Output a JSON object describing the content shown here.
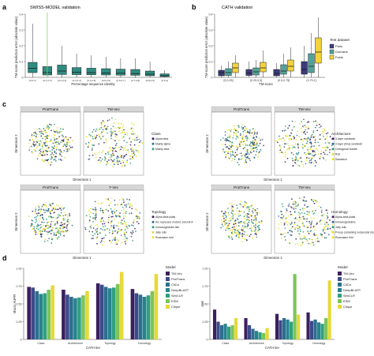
{
  "panel_labels": {
    "a": "a",
    "b": "b",
    "c": "c",
    "d": "d"
  },
  "colors": {
    "teal": "#2e8b80",
    "pairs": "#3b3b7a",
    "domains": "#4fa39a",
    "folds": "#f2d33c",
    "green_line": "#8bd36b",
    "strip_bg": "#d6d6d6",
    "scatter": [
      "#3b1f5e",
      "#2e6f8e",
      "#2fa07f",
      "#e8d83a",
      "#ece51f"
    ]
  },
  "chart_data": [
    {
      "id": "a",
      "type": "box",
      "title": "SWISS-MODEL validation",
      "ylabel": "TM-score prediction error (absolute value)",
      "xlabel": "Percentage sequence identity",
      "ylim": [
        0,
        0.4
      ],
      "yticks": [
        "0",
        "0.1",
        "0.2",
        "0.3",
        "0.4"
      ],
      "categories": [
        "[0,0.1]",
        "(0.1,0.2]",
        "(0.2,0.3]",
        "(0.3,0.4]",
        "(0.4,0.5]",
        "(0.5,0.6]",
        "(0.6,0.7]",
        "(0.7,0.8]",
        "(0.8,0.9]",
        "(0.9,1]"
      ],
      "boxes": [
        {
          "min": 0.0,
          "q1": 0.03,
          "median": 0.058,
          "q3": 0.095,
          "max": 0.34
        },
        {
          "min": 0.0,
          "q1": 0.015,
          "median": 0.03,
          "q3": 0.068,
          "max": 0.24
        },
        {
          "min": 0.0,
          "q1": 0.018,
          "median": 0.04,
          "q3": 0.078,
          "max": 0.2
        },
        {
          "min": 0.0,
          "q1": 0.017,
          "median": 0.033,
          "q3": 0.062,
          "max": 0.15
        },
        {
          "min": 0.0,
          "q1": 0.016,
          "median": 0.03,
          "q3": 0.058,
          "max": 0.14
        },
        {
          "min": 0.0,
          "q1": 0.015,
          "median": 0.028,
          "q3": 0.055,
          "max": 0.13
        },
        {
          "min": 0.0,
          "q1": 0.014,
          "median": 0.026,
          "q3": 0.052,
          "max": 0.12
        },
        {
          "min": 0.0,
          "q1": 0.013,
          "median": 0.024,
          "q3": 0.05,
          "max": 0.12
        },
        {
          "min": 0.0,
          "q1": 0.01,
          "median": 0.02,
          "q3": 0.04,
          "max": 0.1
        },
        {
          "min": 0.0,
          "q1": 0.005,
          "median": 0.01,
          "q3": 0.022,
          "max": 0.045
        }
      ],
      "vline_after_category": 1
    },
    {
      "id": "b",
      "type": "box",
      "title": "CATH validation",
      "ylabel": "TM-score prediction error (absolute value)",
      "xlabel": "TM-score",
      "ylim": [
        0,
        0.4
      ],
      "yticks": [
        "0",
        "0.1",
        "0.2",
        "0.3",
        "0.4"
      ],
      "categories": [
        "[0,0.25]",
        "(0.25,0.5]",
        "(0.5,0.75]",
        "(0.75,1]"
      ],
      "legend_title": "Test dataset",
      "series": [
        {
          "name": "Pairs",
          "boxes": [
            {
              "min": 0.0,
              "q1": 0.01,
              "median": 0.03,
              "q3": 0.045,
              "max": 0.075
            },
            {
              "min": 0.0,
              "q1": 0.012,
              "median": 0.027,
              "q3": 0.05,
              "max": 0.1
            },
            {
              "min": 0.0,
              "q1": 0.01,
              "median": 0.025,
              "q3": 0.05,
              "max": 0.09
            },
            {
              "min": 0.0,
              "q1": 0.02,
              "median": 0.05,
              "q3": 0.1,
              "max": 0.2
            }
          ]
        },
        {
          "name": "Domains",
          "boxes": [
            {
              "min": 0.0,
              "q1": 0.012,
              "median": 0.03,
              "q3": 0.055,
              "max": 0.1
            },
            {
              "min": 0.0,
              "q1": 0.015,
              "median": 0.035,
              "q3": 0.06,
              "max": 0.11
            },
            {
              "min": 0.0,
              "q1": 0.02,
              "median": 0.04,
              "q3": 0.08,
              "max": 0.15
            },
            {
              "min": 0.0,
              "q1": 0.03,
              "median": 0.07,
              "q3": 0.15,
              "max": 0.28
            }
          ]
        },
        {
          "name": "Folds",
          "boxes": [
            {
              "min": 0.0,
              "q1": 0.03,
              "median": 0.06,
              "q3": 0.09,
              "max": 0.14
            },
            {
              "min": 0.0,
              "q1": 0.035,
              "median": 0.06,
              "q3": 0.095,
              "max": 0.17
            },
            {
              "min": 0.0,
              "q1": 0.04,
              "median": 0.07,
              "q3": 0.11,
              "max": 0.19
            },
            {
              "min": 0.0,
              "q1": 0.09,
              "median": 0.16,
              "q3": 0.25,
              "max": 0.38
            }
          ]
        }
      ]
    },
    {
      "id": "d-left",
      "type": "bar",
      "ylabel": "Macro AUPR",
      "xlabel": "CATH tier",
      "ylim": [
        0,
        1
      ],
      "yticks": [
        "0",
        "0.25",
        "0.50",
        "0.75",
        "1.00"
      ],
      "categories": [
        "Class",
        "Architecture",
        "Topology",
        "Homology"
      ],
      "series": [
        {
          "name": "TM-Vec",
          "values": [
            0.74,
            0.7,
            0.79,
            0.71
          ]
        },
        {
          "name": "ProtTrans",
          "values": [
            0.73,
            0.63,
            0.77,
            0.65
          ]
        },
        {
          "name": "CliCa",
          "values": [
            0.68,
            0.6,
            0.74,
            0.63
          ]
        },
        {
          "name": "DeepBLAST",
          "values": [
            0.64,
            0.58,
            0.72,
            0.6
          ]
        },
        {
          "name": "SimCLR",
          "values": [
            0.65,
            0.59,
            0.73,
            0.62
          ]
        },
        {
          "name": "ESM",
          "values": [
            0.7,
            0.62,
            0.78,
            0.68
          ]
        },
        {
          "name": "Clique",
          "values": [
            0.76,
            0.68,
            0.95,
            0.92
          ]
        }
      ]
    },
    {
      "id": "d-right",
      "type": "bar",
      "ylabel": "AMI",
      "xlabel": "CATH tier",
      "ylim": [
        0,
        1
      ],
      "yticks": [
        "0",
        "0.25",
        "0.50",
        "0.75",
        "1.00"
      ],
      "categories": [
        "Class",
        "Architecture",
        "Topology",
        "Homology"
      ],
      "series": [
        {
          "name": "TM-Vec",
          "values": [
            0.42,
            0.3,
            0.36,
            0.38
          ]
        },
        {
          "name": "ProtTrans",
          "values": [
            0.25,
            0.2,
            0.27,
            0.26
          ]
        },
        {
          "name": "CliCa",
          "values": [
            0.2,
            0.15,
            0.3,
            0.28
          ]
        },
        {
          "name": "DeepBLAST",
          "values": [
            0.22,
            0.12,
            0.28,
            0.24
          ]
        },
        {
          "name": "SimCLR",
          "values": [
            0.18,
            0.1,
            0.25,
            0.22
          ]
        },
        {
          "name": "ESM",
          "values": [
            0.2,
            0.09,
            0.92,
            0.3
          ]
        },
        {
          "name": "Clique",
          "values": [
            0.3,
            0.16,
            0.35,
            0.83
          ]
        }
      ]
    }
  ],
  "legend_model_title": "Model",
  "scatter_panels": [
    {
      "id": "c-class",
      "strips": [
        "ProtTrans",
        "TM-Vec"
      ],
      "ylabel": "Dimension 2",
      "xlabel": "Dimension 1",
      "legend_title": "Class",
      "legend": [
        "Alpha beta",
        "Mainly alpha",
        "Mainly beta"
      ]
    },
    {
      "id": "c-arch",
      "strips": [
        "ProtTrans",
        "TM-Vec"
      ],
      "ylabel": "Dimension 2",
      "xlabel": "Dimension 1",
      "legend_title": "Architecture",
      "legend": [
        "3-layer sandwich",
        "3-layer (bba) sandwich",
        "Orthogonal bundle",
        "Roll",
        "Sandwich"
      ]
    },
    {
      "id": "c-topo",
      "strips": [
        "ProtTrans",
        "T-Vec"
      ],
      "ylabel": "Dimension 2",
      "xlabel": "Dimension 1",
      "legend_title": "Topology",
      "legend": [
        "Alpha-beta plaits",
        "Arc repressor mutant, subunit A",
        "Immunoglobulin-like",
        "Jelly rolls",
        "Rossmann fold"
      ]
    },
    {
      "id": "c-homo",
      "strips": [
        "ProtTrans",
        "TM-Vec"
      ],
      "ylabel": "Dimension 2",
      "xlabel": "Dimension 1",
      "legend_title": "Homology",
      "legend": [
        "Alpha-beta plaits",
        "Immunoglobulins",
        "Jelly rolls",
        "P-loop containing nucleoside triphosphate hydrolases",
        "Rossmann fold"
      ]
    }
  ]
}
